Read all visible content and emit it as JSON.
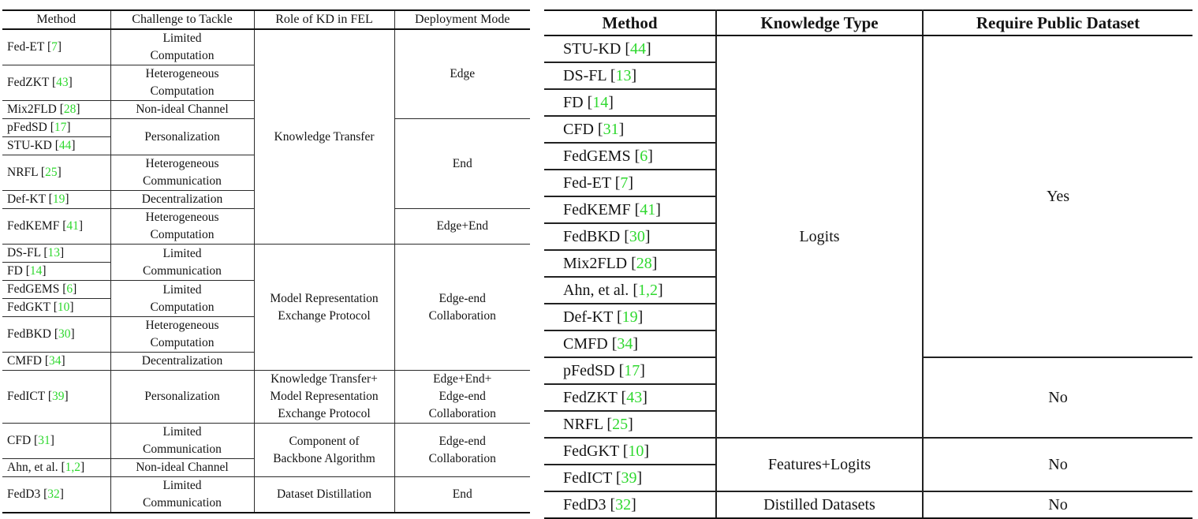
{
  "page": {
    "background": "#ffffff",
    "text_color": "#141414"
  },
  "citation": {
    "open": "[",
    "close": "]",
    "color": "#2fd82f"
  },
  "left_table": {
    "headers": [
      "Method",
      "Challenge to Tackle",
      "Role of KD in FEL",
      "Deployment Mode"
    ],
    "rows": [
      {
        "method": {
          "name": "Fed-ET",
          "ref": "7"
        },
        "challenge": {
          "lines": [
            "Limited",
            "Computation"
          ],
          "rowspan": 1
        },
        "role": {
          "lines": [
            "Knowledge Transfer"
          ],
          "rowspan": 8
        },
        "deployment": {
          "lines": [
            "Edge"
          ],
          "rowspan": 3
        }
      },
      {
        "method": {
          "name": "FedZKT",
          "ref": "43"
        },
        "challenge": {
          "lines": [
            "Heterogeneous",
            "Computation"
          ],
          "rowspan": 1
        }
      },
      {
        "method": {
          "name": "Mix2FLD",
          "ref": "28"
        },
        "challenge": {
          "lines": [
            "Non-ideal Channel"
          ],
          "rowspan": 1
        }
      },
      {
        "method": {
          "name": "pFedSD",
          "ref": "17"
        },
        "challenge": {
          "lines": [
            "Personalization"
          ],
          "rowspan": 2
        },
        "deployment": {
          "lines": [
            "End"
          ],
          "rowspan": 4
        }
      },
      {
        "method": {
          "name": "STU-KD",
          "ref": "44"
        }
      },
      {
        "method": {
          "name": "NRFL",
          "ref": "25"
        },
        "challenge": {
          "lines": [
            "Heterogeneous",
            "Communication"
          ],
          "rowspan": 1
        }
      },
      {
        "method": {
          "name": "Def-KT",
          "ref": "19"
        },
        "challenge": {
          "lines": [
            "Decentralization"
          ],
          "rowspan": 1
        }
      },
      {
        "method": {
          "name": "FedKEMF",
          "ref": "41"
        },
        "challenge": {
          "lines": [
            "Heterogeneous",
            "Computation"
          ],
          "rowspan": 1
        },
        "deployment": {
          "lines": [
            "Edge+End"
          ],
          "rowspan": 1
        }
      },
      {
        "method": {
          "name": "DS-FL",
          "ref": "13"
        },
        "challenge": {
          "lines": [
            "Limited",
            "Communication"
          ],
          "rowspan": 2
        },
        "role": {
          "lines": [
            "Model Representation",
            "Exchange Protocol"
          ],
          "rowspan": 6
        },
        "deployment": {
          "lines": [
            "Edge-end",
            "Collaboration"
          ],
          "rowspan": 6
        }
      },
      {
        "method": {
          "name": "FD",
          "ref": "14"
        }
      },
      {
        "method": {
          "name": "FedGEMS",
          "ref": "6"
        },
        "challenge": {
          "lines": [
            "Limited",
            "Computation"
          ],
          "rowspan": 2
        }
      },
      {
        "method": {
          "name": "FedGKT",
          "ref": "10"
        }
      },
      {
        "method": {
          "name": "FedBKD",
          "ref": "30"
        },
        "challenge": {
          "lines": [
            "Heterogeneous",
            "Computation"
          ],
          "rowspan": 1
        }
      },
      {
        "method": {
          "name": "CMFD",
          "ref": "34"
        },
        "challenge": {
          "lines": [
            "Decentralization"
          ],
          "rowspan": 1
        }
      },
      {
        "method": {
          "name": "FedICT",
          "ref": "39"
        },
        "challenge": {
          "lines": [
            "Personalization"
          ],
          "rowspan": 1
        },
        "role": {
          "lines": [
            "Knowledge Transfer+",
            "Model Representation",
            "Exchange Protocol"
          ],
          "rowspan": 1
        },
        "deployment": {
          "lines": [
            "Edge+End+",
            "Edge-end",
            "Collaboration"
          ],
          "rowspan": 1
        }
      },
      {
        "method": {
          "name": "CFD",
          "ref": "31"
        },
        "challenge": {
          "lines": [
            "Limited",
            "Communication"
          ],
          "rowspan": 1
        },
        "role": {
          "lines": [
            "Component of",
            "Backbone Algorithm"
          ],
          "rowspan": 2
        },
        "deployment": {
          "lines": [
            "Edge-end",
            "Collaboration"
          ],
          "rowspan": 2
        }
      },
      {
        "method": {
          "name": "Ahn, et al.",
          "ref": "1,2"
        },
        "challenge": {
          "lines": [
            "Non-ideal Channel"
          ],
          "rowspan": 1
        }
      },
      {
        "method": {
          "name": "FedD3",
          "ref": "32"
        },
        "challenge": {
          "lines": [
            "Limited",
            "Communication"
          ],
          "rowspan": 1
        },
        "role": {
          "lines": [
            "Dataset Distillation"
          ],
          "rowspan": 1
        },
        "deployment": {
          "lines": [
            "End"
          ],
          "rowspan": 1
        }
      }
    ]
  },
  "right_table": {
    "headers": [
      "Method",
      "Knowledge Type",
      "Require Public Dataset"
    ],
    "rows": [
      {
        "method": {
          "name": "STU-KD",
          "ref": "44"
        },
        "knowledge": {
          "lines": [
            "Logits"
          ],
          "rowspan": 15
        },
        "public_dataset": {
          "lines": [
            "Yes"
          ],
          "rowspan": 12
        }
      },
      {
        "method": {
          "name": "DS-FL",
          "ref": "13"
        }
      },
      {
        "method": {
          "name": "FD",
          "ref": "14"
        }
      },
      {
        "method": {
          "name": "CFD",
          "ref": "31"
        }
      },
      {
        "method": {
          "name": "FedGEMS",
          "ref": "6"
        }
      },
      {
        "method": {
          "name": "Fed-ET",
          "ref": "7"
        }
      },
      {
        "method": {
          "name": "FedKEMF",
          "ref": "41"
        }
      },
      {
        "method": {
          "name": "FedBKD",
          "ref": "30"
        }
      },
      {
        "method": {
          "name": "Mix2FLD",
          "ref": "28"
        }
      },
      {
        "method": {
          "name": "Ahn, et al.",
          "ref": "1,2"
        }
      },
      {
        "method": {
          "name": "Def-KT",
          "ref": "19"
        }
      },
      {
        "method": {
          "name": "CMFD",
          "ref": "34"
        }
      },
      {
        "method": {
          "name": "pFedSD",
          "ref": "17"
        },
        "public_dataset": {
          "lines": [
            "No"
          ],
          "rowspan": 3
        }
      },
      {
        "method": {
          "name": "FedZKT",
          "ref": "43"
        }
      },
      {
        "method": {
          "name": "NRFL",
          "ref": "25"
        }
      },
      {
        "method": {
          "name": "FedGKT",
          "ref": "10"
        },
        "knowledge": {
          "lines": [
            "Features+Logits"
          ],
          "rowspan": 2
        },
        "public_dataset": {
          "lines": [
            "No"
          ],
          "rowspan": 2
        }
      },
      {
        "method": {
          "name": "FedICT",
          "ref": "39"
        }
      },
      {
        "method": {
          "name": "FedD3",
          "ref": "32"
        },
        "knowledge": {
          "lines": [
            "Distilled Datasets"
          ],
          "rowspan": 1
        },
        "public_dataset": {
          "lines": [
            "No"
          ],
          "rowspan": 1
        }
      }
    ]
  }
}
